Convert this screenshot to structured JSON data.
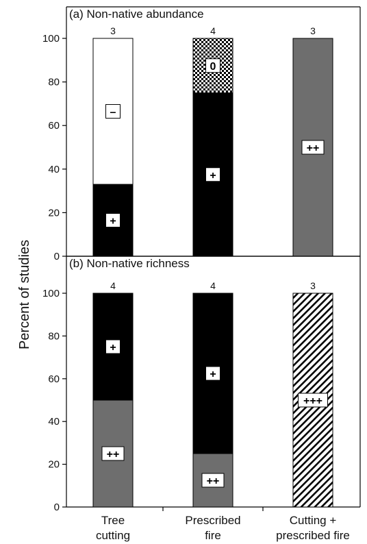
{
  "chart_data": {
    "type": "bar",
    "stacked": true,
    "ylabel": "Percent of studies",
    "ylim": [
      0,
      100
    ],
    "yticks": [
      0,
      20,
      40,
      60,
      80,
      100
    ],
    "categories": [
      {
        "line1": "Tree",
        "line2": "cutting"
      },
      {
        "line1": "Prescribed",
        "line2": "fire"
      },
      {
        "line1": "Cutting +",
        "line2": "prescribed fire"
      }
    ],
    "panels": [
      {
        "title": "(a) Non-native abundance",
        "bars": [
          {
            "n": "3",
            "segments": [
              {
                "label": "+",
                "from": 0,
                "to": 33,
                "fill": "black"
              },
              {
                "label": "–",
                "from": 33,
                "to": 100,
                "fill": "white"
              }
            ]
          },
          {
            "n": "4",
            "segments": [
              {
                "label": "+",
                "from": 0,
                "to": 75,
                "fill": "black"
              },
              {
                "label": "0",
                "from": 75,
                "to": 100,
                "fill": "checker"
              }
            ]
          },
          {
            "n": "3",
            "segments": [
              {
                "label": "++",
                "from": 0,
                "to": 100,
                "fill": "gray"
              }
            ]
          }
        ]
      },
      {
        "title": "(b) Non-native richness",
        "bars": [
          {
            "n": "4",
            "segments": [
              {
                "label": "++",
                "from": 0,
                "to": 50,
                "fill": "gray"
              },
              {
                "label": "+",
                "from": 50,
                "to": 100,
                "fill": "black"
              }
            ]
          },
          {
            "n": "4",
            "segments": [
              {
                "label": "++",
                "from": 0,
                "to": 25,
                "fill": "gray"
              },
              {
                "label": "+",
                "from": 25,
                "to": 100,
                "fill": "black"
              }
            ]
          },
          {
            "n": "3",
            "segments": [
              {
                "label": "+++",
                "from": 0,
                "to": 100,
                "fill": "hatch"
              }
            ]
          }
        ]
      }
    ],
    "colors": {
      "black": "#000000",
      "gray": "#6e6e6e",
      "white": "#ffffff",
      "frame": "#000000"
    }
  }
}
